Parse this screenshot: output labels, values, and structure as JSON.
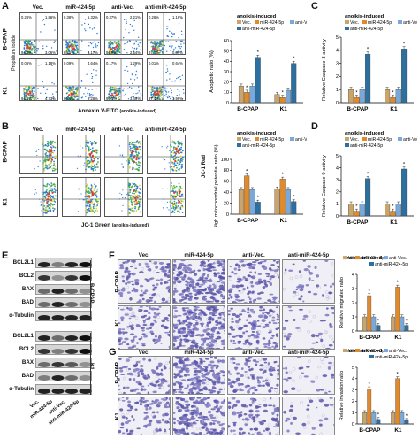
{
  "panels": {
    "A": {
      "label": "A",
      "columns": [
        "Vec.",
        "miR-424-5p",
        "anti-Vec.",
        "anti-miR-424-5p"
      ],
      "rows": [
        "B-CPAP",
        "K1"
      ],
      "xlabel": "Annexin V-FITC",
      "xlabel_sub": "(anoikis-induced)",
      "ylabel": "Propidium iodide",
      "quadrant_values": [
        [
          [
            "0.26%",
            "1.86%",
            "94.8%",
            "3.06%"
          ],
          [
            "0.38%",
            "5.32%",
            "88.1%",
            "6.17%"
          ],
          [
            "0.37%",
            "2.21%",
            "94.9%",
            "2.54%"
          ],
          [
            "0.26%",
            "1.16%",
            "97.7%",
            "0.84%"
          ]
        ],
        [
          [
            "0.06%",
            "1.18%",
            "94.0%",
            "4.73%"
          ],
          [
            "0.09%",
            "4.64%",
            "86.0%",
            "9.28%"
          ],
          [
            "0.17%",
            "1.29%",
            "95.1%",
            "3.49%"
          ],
          [
            "0.01%",
            "0.64%",
            "97.4%",
            "1.96%"
          ]
        ]
      ]
    },
    "B": {
      "label": "B",
      "columns": [
        "Vec.",
        "miR-424-5p",
        "anti-Vec.",
        "anti-miR-424-5p"
      ],
      "rows": [
        "B-CPAP",
        "K1"
      ],
      "xlabel": "JC-1 Green",
      "xlabel_sub": "(anoikis-induced)",
      "ylabel": "JC-1 Red"
    },
    "C": {
      "label": "C"
    },
    "D": {
      "label": "D"
    },
    "E": {
      "label": "E",
      "bands": [
        "BCL2L1",
        "BCL2",
        "BAX",
        "BAD",
        "α-Tubulin"
      ],
      "groups": [
        "B-CPAP",
        "K1"
      ],
      "lanes": [
        "Vec.",
        "miR-424-5p",
        "anti-Vec.",
        "anti-miR-424-5p"
      ]
    },
    "F": {
      "label": "F",
      "columns": [
        "Vec.",
        "miR-424-5p",
        "anti-Vec.",
        "anti-miR-424-5p"
      ],
      "rows": [
        "B-CPAP",
        "K1"
      ]
    },
    "G": {
      "label": "G",
      "columns": [
        "Vec.",
        "miR-424-5p",
        "anti-Vec.",
        "anti-miR-424-5p"
      ],
      "rows": [
        "B-CPAP",
        "K1"
      ]
    }
  },
  "legend": {
    "title": "anoikis-induced",
    "items": [
      "Vec.",
      "miR-424-5p",
      "anti-Vec.",
      "anti-miR-424-5p"
    ],
    "colors": [
      "#c9a56b",
      "#e08a2c",
      "#7aa8d8",
      "#2d6f9e"
    ]
  },
  "chart_data": [
    {
      "id": "A-bar",
      "type": "bar",
      "ylabel": "Apoptotic ratio (%)",
      "categories": [
        "B-CPAP",
        "K1"
      ],
      "ylim": [
        0,
        60
      ],
      "yticks": [
        0,
        10,
        20,
        30,
        40,
        50,
        60
      ],
      "series": [
        {
          "name": "Vec.",
          "values": [
            16,
            8
          ]
        },
        {
          "name": "miR-424-5p",
          "values": [
            10,
            5
          ]
        },
        {
          "name": "anti-Vec.",
          "values": [
            16,
            12
          ]
        },
        {
          "name": "anti-miR-424-5p",
          "values": [
            44,
            38
          ]
        }
      ]
    },
    {
      "id": "B-bar",
      "type": "bar",
      "ylabel": "High mitochondrial potential ratio (%)",
      "categories": [
        "B-CPAP",
        "K1"
      ],
      "ylim": [
        0,
        100
      ],
      "yticks": [
        0,
        20,
        40,
        60,
        80,
        100
      ],
      "series": [
        {
          "name": "Vec.",
          "values": [
            45,
            46
          ]
        },
        {
          "name": "miR-424-5p",
          "values": [
            70,
            64
          ]
        },
        {
          "name": "anti-Vec.",
          "values": [
            45,
            45
          ]
        },
        {
          "name": "anti-miR-424-5p",
          "values": [
            22,
            23
          ]
        }
      ]
    },
    {
      "id": "C-bar",
      "type": "bar",
      "ylabel": "Relative Caspase-3 activity",
      "categories": [
        "B-CPAP",
        "K1"
      ],
      "ylim": [
        0,
        5
      ],
      "yticks": [
        0,
        1,
        2,
        3,
        4,
        5
      ],
      "series": [
        {
          "name": "Vec.",
          "values": [
            1.0,
            1.0
          ]
        },
        {
          "name": "miR-424-5p",
          "values": [
            0.4,
            0.4
          ]
        },
        {
          "name": "anti-Vec.",
          "values": [
            1.0,
            1.0
          ]
        },
        {
          "name": "anti-miR-424-5p",
          "values": [
            3.7,
            4.1
          ]
        }
      ]
    },
    {
      "id": "D-bar",
      "type": "bar",
      "ylabel": "Relative Caspase-9 activity",
      "categories": [
        "B-CPAP",
        "K1"
      ],
      "ylim": [
        0,
        5
      ],
      "yticks": [
        0,
        1,
        2,
        3,
        4,
        5
      ],
      "series": [
        {
          "name": "Vec.",
          "values": [
            1.0,
            1.0
          ]
        },
        {
          "name": "miR-424-5p",
          "values": [
            0.4,
            0.4
          ]
        },
        {
          "name": "anti-Vec.",
          "values": [
            1.0,
            1.0
          ]
        },
        {
          "name": "anti-miR-424-5p",
          "values": [
            3.1,
            3.9
          ]
        }
      ]
    },
    {
      "id": "F-bar",
      "type": "bar",
      "ylabel": "Relative migrated ratio",
      "categories": [
        "B-CPAP",
        "K1"
      ],
      "ylim": [
        0,
        4
      ],
      "yticks": [
        0,
        1,
        2,
        3,
        4
      ],
      "series": [
        {
          "name": "Vec.",
          "values": [
            1.0,
            1.0
          ]
        },
        {
          "name": "miR-424-5p",
          "values": [
            2.5,
            3.1
          ]
        },
        {
          "name": "anti-Vec.",
          "values": [
            1.0,
            1.0
          ]
        },
        {
          "name": "anti-miR-424-5p",
          "values": [
            0.4,
            0.4
          ]
        }
      ]
    },
    {
      "id": "G-bar",
      "type": "bar",
      "ylabel": "Relative invasion ratio",
      "categories": [
        "B-CPAP",
        "K1"
      ],
      "ylim": [
        0,
        5
      ],
      "yticks": [
        0,
        1,
        2,
        3,
        4,
        5
      ],
      "series": [
        {
          "name": "Vec.",
          "values": [
            1.0,
            1.0
          ]
        },
        {
          "name": "miR-424-5p",
          "values": [
            3.1,
            4.0
          ]
        },
        {
          "name": "anti-Vec.",
          "values": [
            1.0,
            1.0
          ]
        },
        {
          "name": "anti-miR-424-5p",
          "values": [
            0.4,
            0.3
          ]
        }
      ]
    }
  ]
}
